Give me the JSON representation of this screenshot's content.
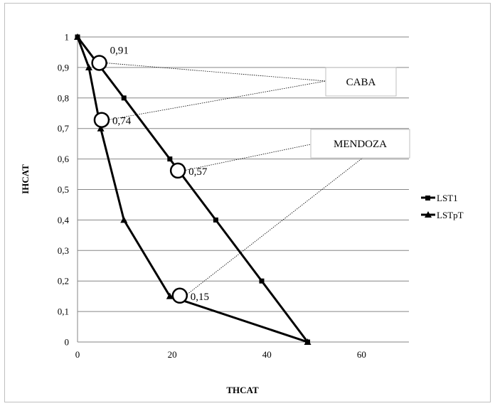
{
  "chart_data": {
    "type": "line",
    "title": "",
    "xlabel": "THCAT",
    "ylabel": "IHCAT",
    "xlim": [
      0,
      70
    ],
    "ylim": [
      0,
      1
    ],
    "x_ticks": [
      "0",
      "20",
      "40",
      "60"
    ],
    "y_ticks": [
      "0",
      "0,1",
      "0,2",
      "0,3",
      "0,4",
      "0,5",
      "0,6",
      "0,7",
      "0,8",
      "0,9",
      "1"
    ],
    "grid": "horizontal",
    "legend_position": "right",
    "series": [
      {
        "name": "LST1",
        "marker": "square",
        "points": [
          [
            0,
            1
          ],
          [
            4.9,
            0.9
          ],
          [
            9.8,
            0.8
          ],
          [
            19.5,
            0.6
          ],
          [
            29.2,
            0.4
          ],
          [
            38.9,
            0.2
          ],
          [
            48.6,
            0
          ]
        ]
      },
      {
        "name": "LSTpT",
        "marker": "triangle",
        "points": [
          [
            0,
            1
          ],
          [
            2.4,
            0.9
          ],
          [
            4.9,
            0.7
          ],
          [
            9.8,
            0.4
          ],
          [
            19.5,
            0.15
          ],
          [
            48.6,
            0
          ]
        ]
      }
    ],
    "annotations": [
      {
        "label": "0,91",
        "x": 4.6,
        "y": 0.915,
        "group": "CABA"
      },
      {
        "label": "0,74",
        "x": 5.1,
        "y": 0.728,
        "group": "CABA"
      },
      {
        "label": "0,57",
        "x": 21.2,
        "y": 0.562,
        "group": "MENDOZA"
      },
      {
        "label": "0,15",
        "x": 21.6,
        "y": 0.152,
        "group": "MENDOZA"
      }
    ],
    "callouts": [
      "CABA",
      "MENDOZA"
    ]
  },
  "colors": {
    "line": "#000000",
    "grid": "#868686",
    "callout_border": "#bfbfbf"
  }
}
